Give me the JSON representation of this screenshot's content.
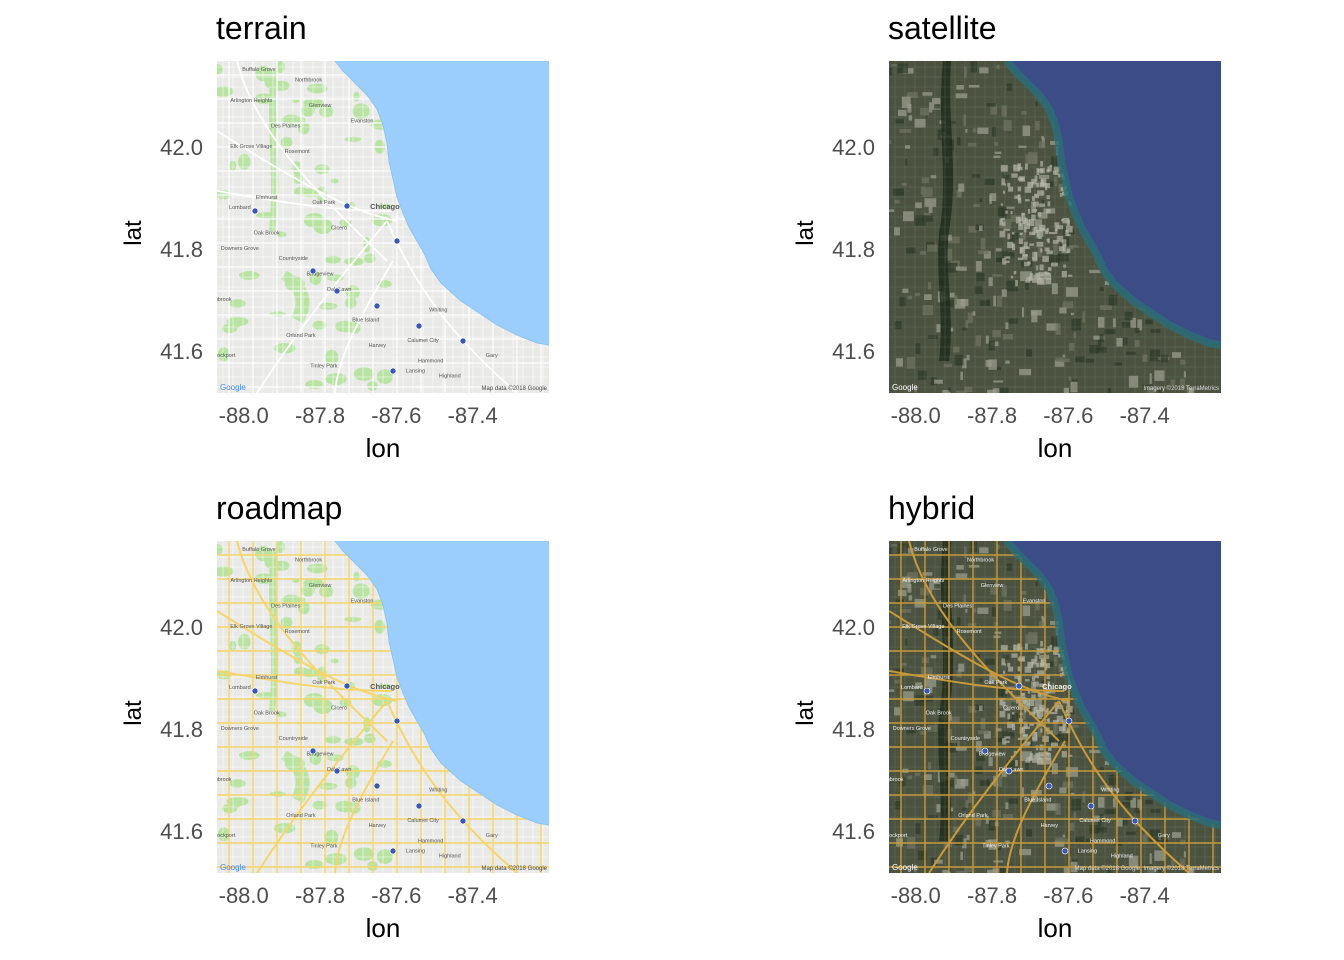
{
  "panels": [
    {
      "title": "terrain",
      "style": "terrain",
      "xlabel": "lon",
      "ylabel": "lat",
      "attribution": "Map data ©2018 Google",
      "google": "Google"
    },
    {
      "title": "satellite",
      "style": "satellite",
      "xlabel": "lon",
      "ylabel": "lat",
      "attribution": "Imagery ©2018 TerraMetrics",
      "google": "Google"
    },
    {
      "title": "roadmap",
      "style": "roadmap",
      "xlabel": "lon",
      "ylabel": "lat",
      "attribution": "Map data ©2018 Google",
      "google": "Google"
    },
    {
      "title": "hybrid",
      "style": "hybrid",
      "xlabel": "lon",
      "ylabel": "lat",
      "attribution": "Map data ©2018 Google, Imagery ©2018 TerraMetrics",
      "google": "Google"
    }
  ],
  "x_ticks": [
    "-88.0",
    "-87.8",
    "-87.6",
    "-87.4"
  ],
  "y_ticks": [
    "42.0",
    "41.8",
    "41.6"
  ],
  "x_tick_values": [
    -88.0,
    -87.8,
    -87.6,
    -87.4
  ],
  "y_tick_values": [
    42.0,
    41.8,
    41.6
  ],
  "xlim": [
    -88.07,
    -87.2
  ],
  "ylim": [
    41.52,
    42.17
  ],
  "place_labels": [
    {
      "name": "Buffalo Grove",
      "lon": -87.96,
      "lat": 42.15
    },
    {
      "name": "Northbrook",
      "lon": -87.83,
      "lat": 42.13
    },
    {
      "name": "Arlington Heights",
      "lon": -87.98,
      "lat": 42.09
    },
    {
      "name": "Glenview",
      "lon": -87.8,
      "lat": 42.08
    },
    {
      "name": "Evanston",
      "lon": -87.69,
      "lat": 42.05
    },
    {
      "name": "Des Plaines",
      "lon": -87.89,
      "lat": 42.04
    },
    {
      "name": "Elk Grove Village",
      "lon": -87.98,
      "lat": 42.0
    },
    {
      "name": "Rosemont",
      "lon": -87.86,
      "lat": 41.99
    },
    {
      "name": "Elmhurst",
      "lon": -87.94,
      "lat": 41.9
    },
    {
      "name": "Oak Park",
      "lon": -87.79,
      "lat": 41.89
    },
    {
      "name": "Chicago",
      "lon": -87.63,
      "lat": 41.88
    },
    {
      "name": "Lombard",
      "lon": -88.01,
      "lat": 41.88
    },
    {
      "name": "Oak Brook",
      "lon": -87.94,
      "lat": 41.83
    },
    {
      "name": "Cicero",
      "lon": -87.75,
      "lat": 41.84
    },
    {
      "name": "Downers Grove",
      "lon": -88.01,
      "lat": 41.8
    },
    {
      "name": "Countryside",
      "lon": -87.87,
      "lat": 41.78
    },
    {
      "name": "Bridgeview",
      "lon": -87.8,
      "lat": 41.75
    },
    {
      "name": "Oak Lawn",
      "lon": -87.75,
      "lat": 41.72
    },
    {
      "name": "Whiting",
      "lon": -87.49,
      "lat": 41.68
    },
    {
      "name": "Blue Island",
      "lon": -87.68,
      "lat": 41.66
    },
    {
      "name": "Orland Park",
      "lon": -87.85,
      "lat": 41.63
    },
    {
      "name": "Calumet City",
      "lon": -87.53,
      "lat": 41.62
    },
    {
      "name": "Harvey",
      "lon": -87.65,
      "lat": 41.61
    },
    {
      "name": "Gary",
      "lon": -87.35,
      "lat": 41.59
    },
    {
      "name": "Hammond",
      "lon": -87.51,
      "lat": 41.58
    },
    {
      "name": "Tinley Park",
      "lon": -87.79,
      "lat": 41.57
    },
    {
      "name": "Lansing",
      "lon": -87.55,
      "lat": 41.56
    },
    {
      "name": "Highland",
      "lon": -87.46,
      "lat": 41.55
    },
    {
      "name": "Lockport",
      "lon": -88.05,
      "lat": 41.59
    },
    {
      "name": "Bolingbrook",
      "lon": -88.07,
      "lat": 41.7
    }
  ],
  "colors": {
    "terrain_land": "#e9e9e7",
    "terrain_water": "#9bcefc",
    "terrain_park": "#b9e3a3",
    "roadmap_road": "#f6d66c",
    "satellite_land": "#4b5340",
    "satellite_water": "#3c4c86",
    "satellite_shore": "#2b6e76",
    "hybrid_road": "#c89a3a"
  }
}
